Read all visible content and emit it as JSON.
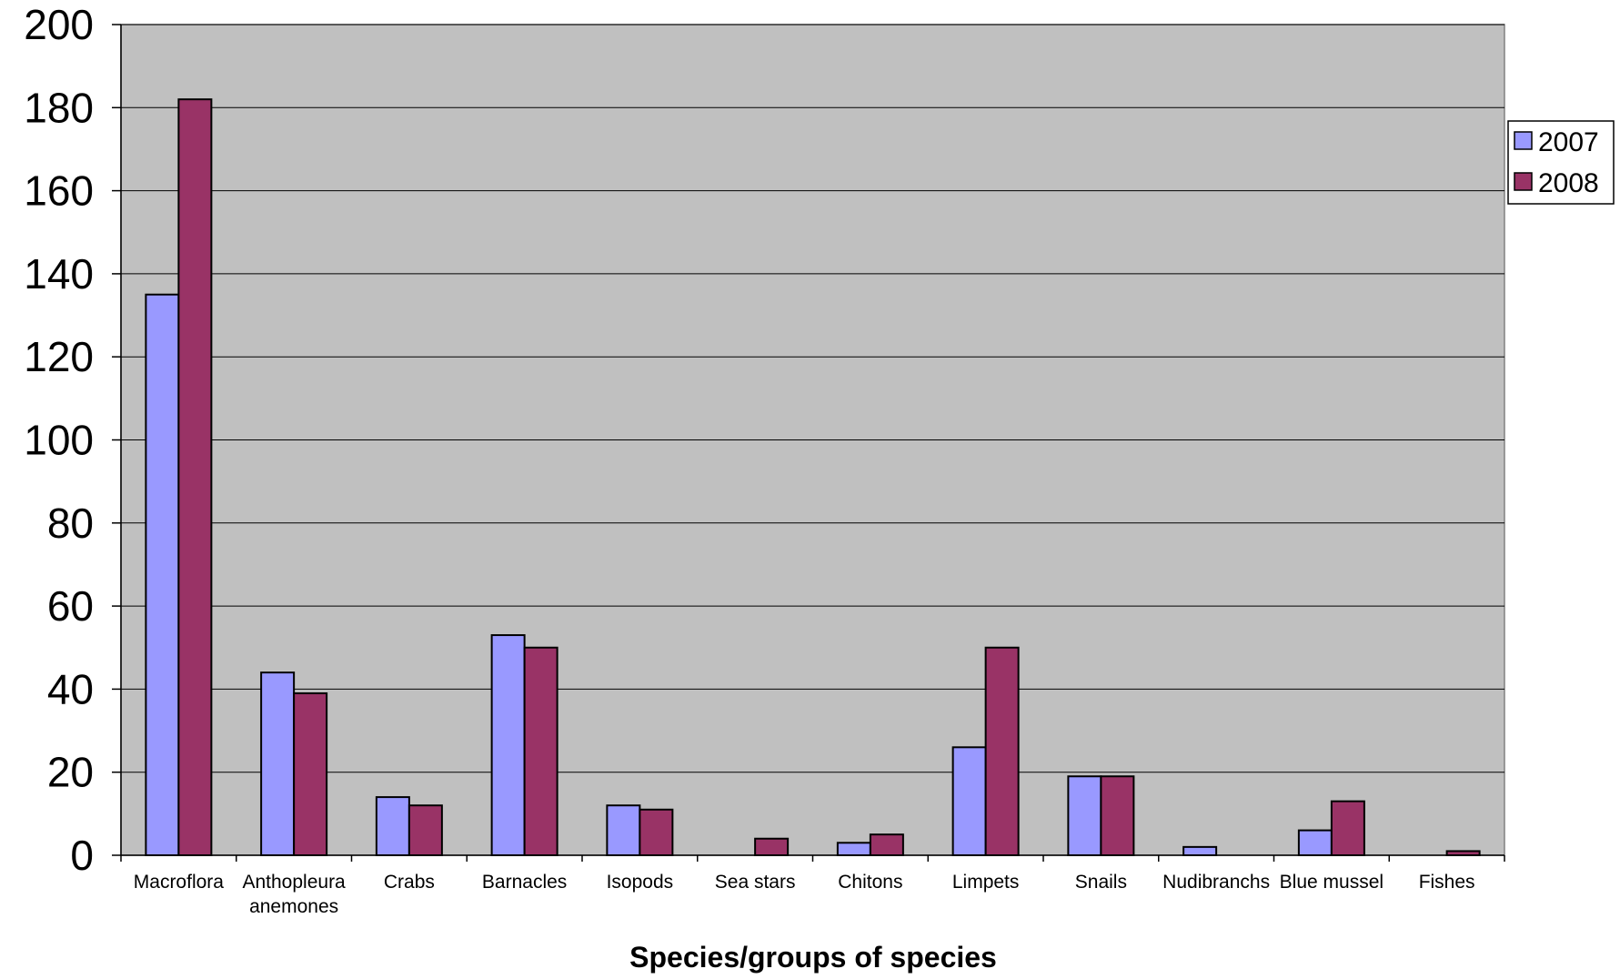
{
  "chart_data": {
    "type": "bar",
    "title": "",
    "xlabel": "Species/groups of species",
    "ylabel": "",
    "ylim": [
      0,
      200
    ],
    "yticks": [
      "0",
      "20",
      "40",
      "60",
      "80",
      "100",
      "120",
      "140",
      "160",
      "180",
      "200"
    ],
    "grid": true,
    "legend_position": "right",
    "plot_background": "#c0c0c0",
    "categories": [
      [
        "Macroflora"
      ],
      [
        "Anthopleura",
        "anemones"
      ],
      [
        "Crabs"
      ],
      [
        "Barnacles"
      ],
      [
        "Isopods"
      ],
      [
        "Sea stars"
      ],
      [
        "Chitons"
      ],
      [
        "Limpets"
      ],
      [
        "Snails"
      ],
      [
        "Nudibranchs"
      ],
      [
        "Blue mussel"
      ],
      [
        "Fishes"
      ]
    ],
    "series": [
      {
        "name": "2007",
        "color": "#9999ff",
        "values": [
          135,
          44,
          14,
          53,
          12,
          0,
          3,
          26,
          19,
          2,
          6,
          0
        ]
      },
      {
        "name": "2008",
        "color": "#993366",
        "values": [
          182,
          39,
          12,
          50,
          11,
          4,
          5,
          50,
          19,
          0,
          13,
          1
        ]
      }
    ]
  }
}
